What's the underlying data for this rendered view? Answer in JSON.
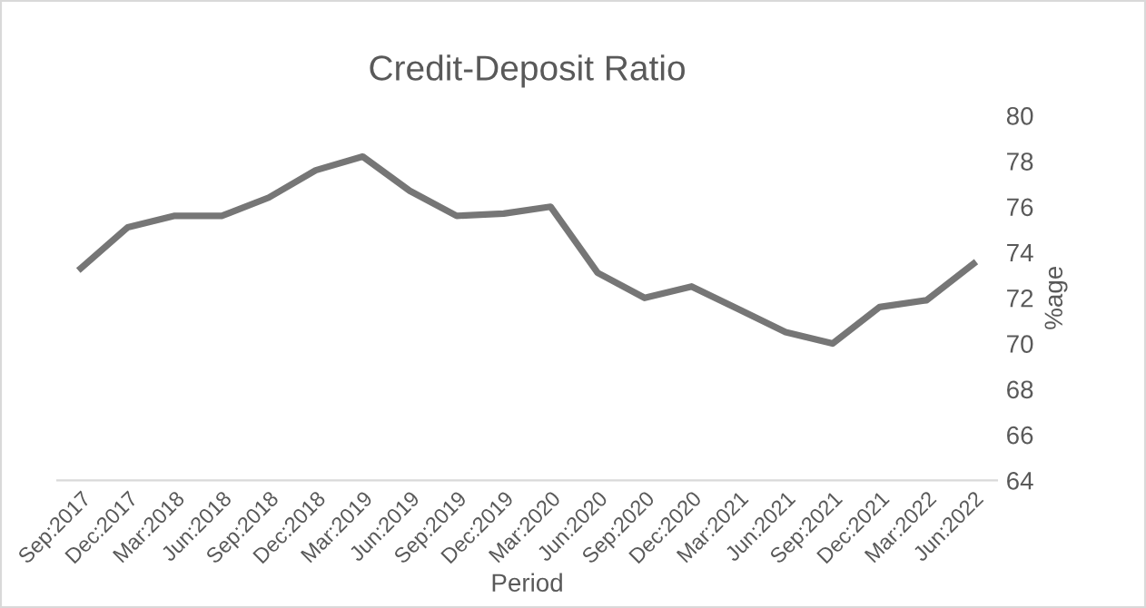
{
  "chart_data": {
    "type": "line",
    "title": "Credit-Deposit Ratio",
    "xlabel": "Period",
    "ylabel": "%age",
    "categories": [
      "Sep:2017",
      "Dec:2017",
      "Mar:2018",
      "Jun:2018",
      "Sep:2018",
      "Dec:2018",
      "Mar:2019",
      "Jun:2019",
      "Sep:2019",
      "Dec:2019",
      "Mar:2020",
      "Jun:2020",
      "Sep:2020",
      "Dec:2020",
      "Mar:2021",
      "Jun:2021",
      "Sep:2021",
      "Dec:2021",
      "Mar:2022",
      "Jun:2022"
    ],
    "series": [
      {
        "color": "#767676",
        "values": [
          73.3,
          75.1,
          75.6,
          75.6,
          76.4,
          77.6,
          78.2,
          76.7,
          75.6,
          75.7,
          76.0,
          73.1,
          72.0,
          72.5,
          71.5,
          70.5,
          70.0,
          71.6,
          71.9,
          73.5
        ]
      }
    ],
    "ylim": [
      64,
      80
    ],
    "yticks": [
      64,
      66,
      68,
      70,
      72,
      74,
      76,
      78,
      80
    ],
    "grid": false,
    "legend": false
  }
}
